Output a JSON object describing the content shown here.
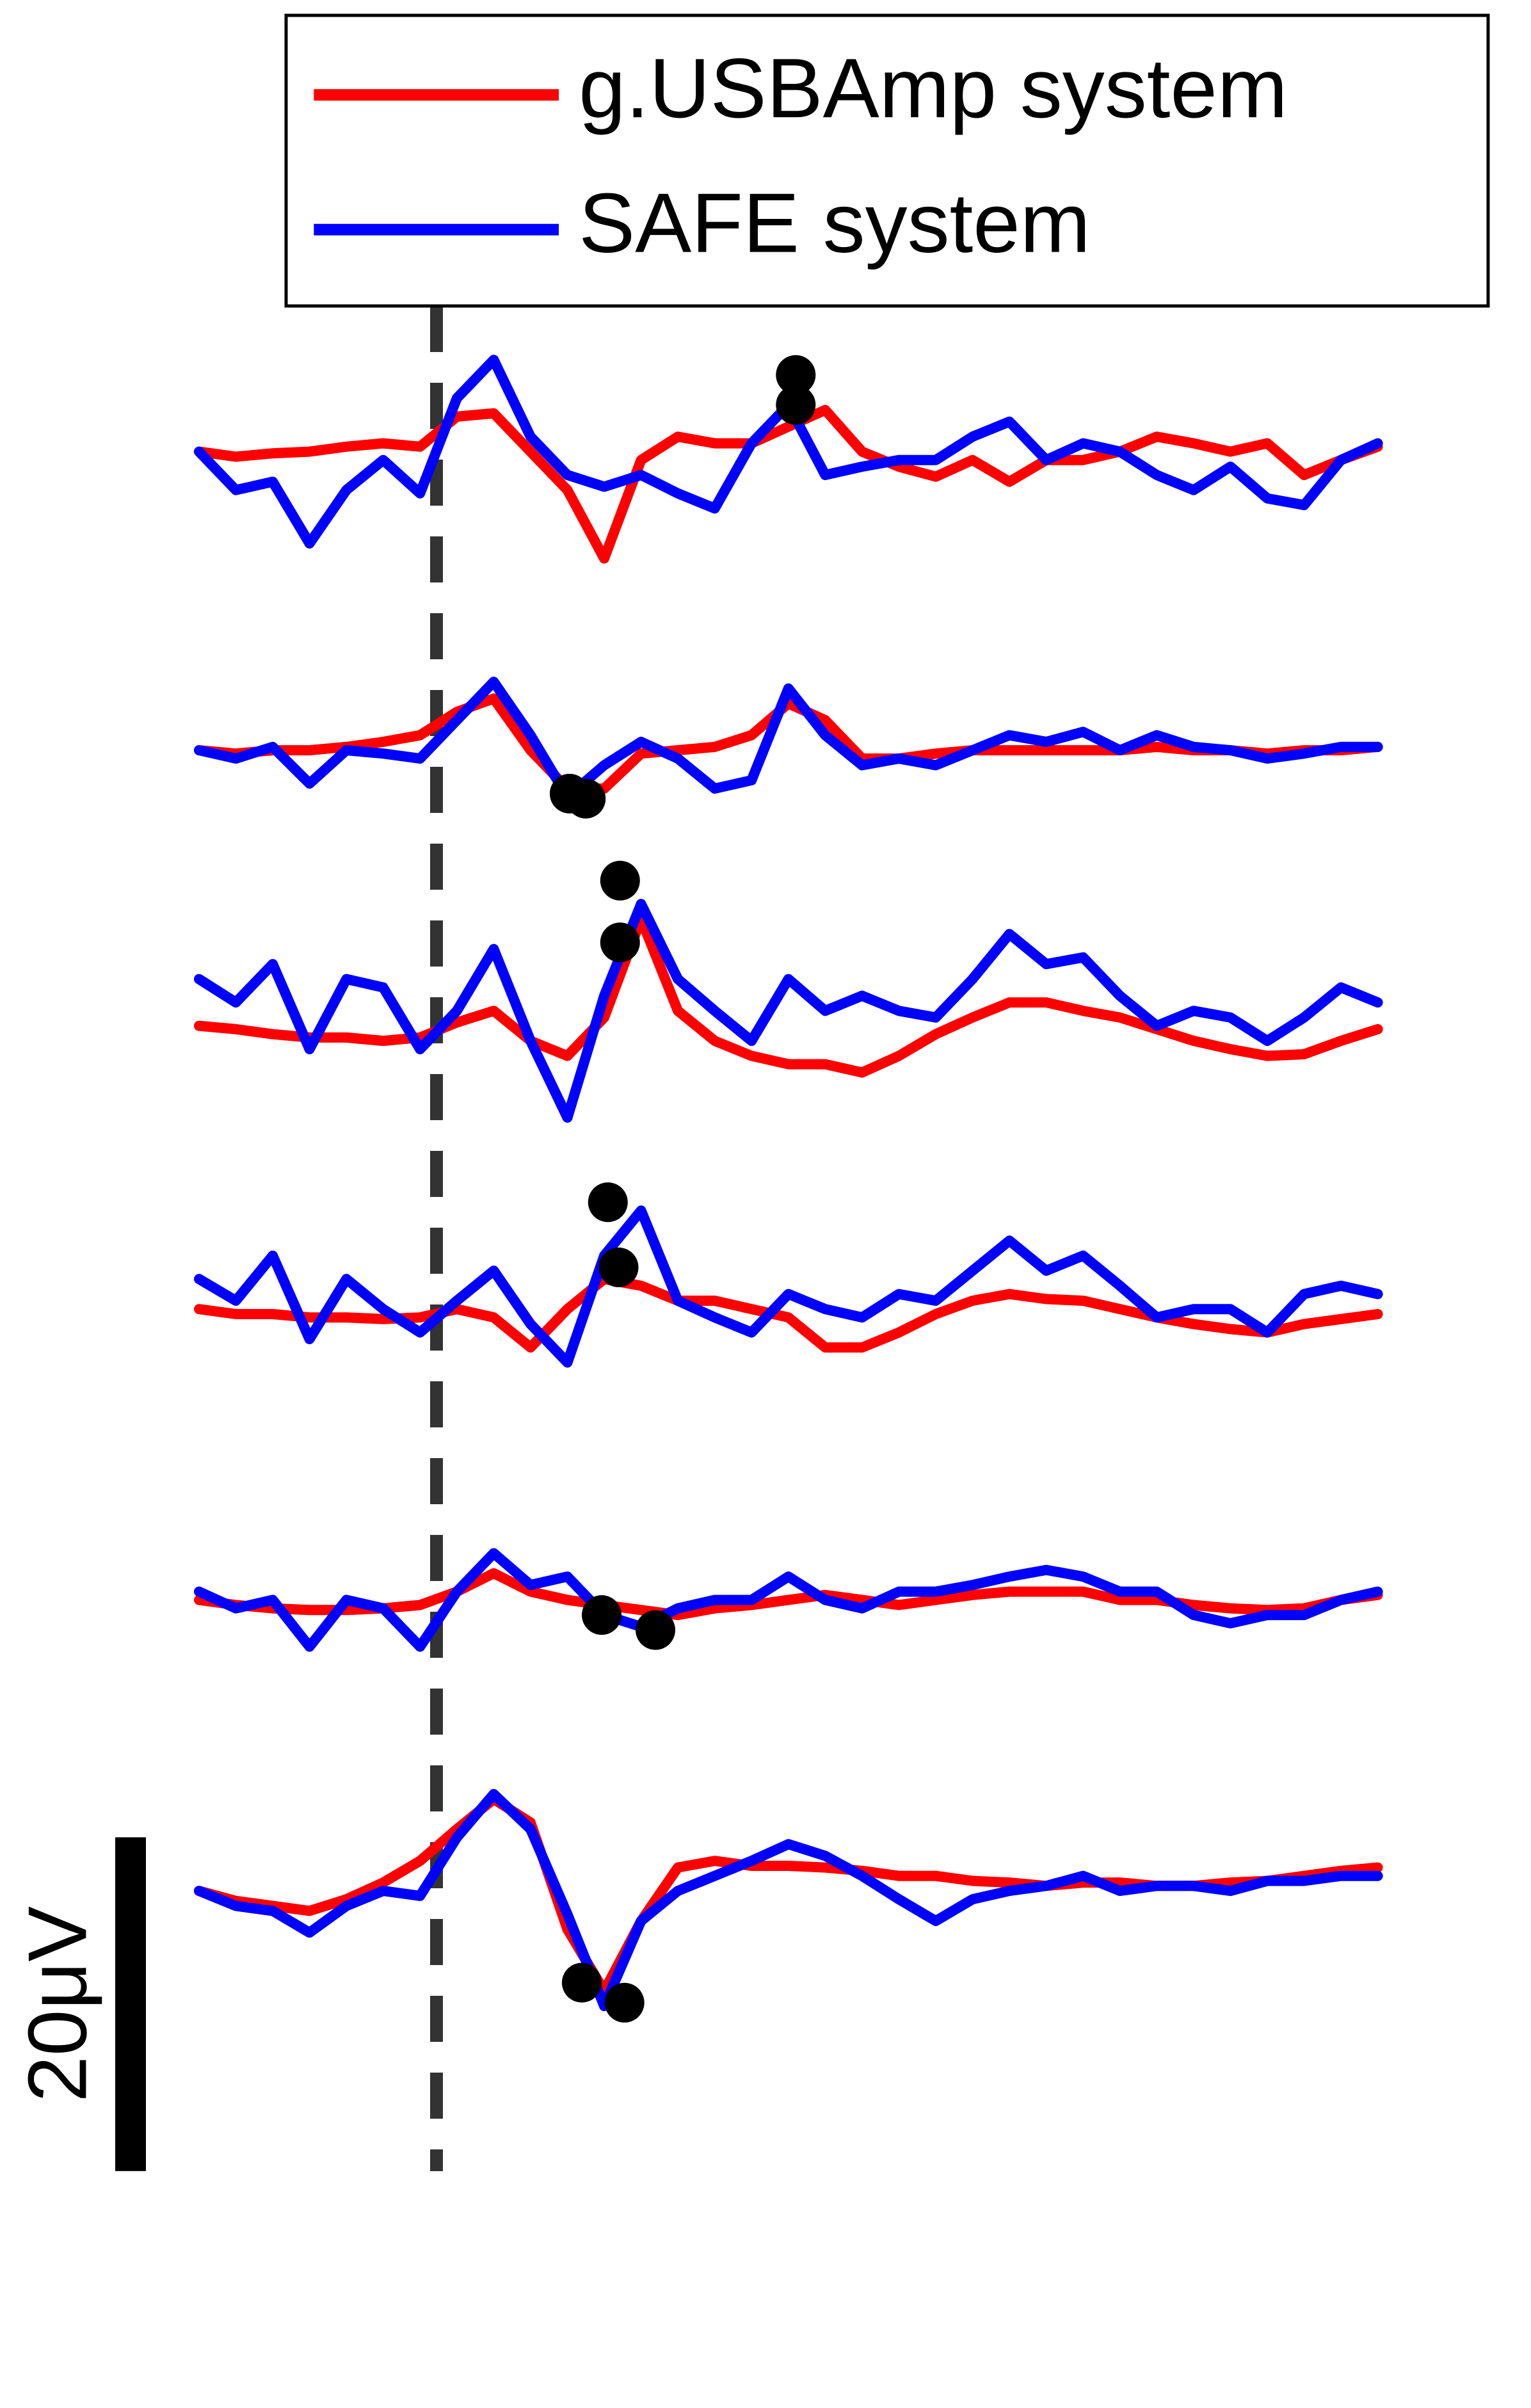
{
  "chart_data": {
    "type": "line",
    "scalebar": {
      "value": 20,
      "label": "20μV"
    },
    "series": [
      {
        "name": "g.USBAmp system",
        "color": "#ff0000",
        "channels": [
          [
            0,
            -0.3,
            -0.1,
            0,
            0.3,
            0.5,
            0.3,
            2.1,
            2.3,
            0,
            -2.3,
            -6.4,
            -0.5,
            0.9,
            0.5,
            0.5,
            1.5,
            2.5,
            0,
            -0.9,
            -1.5,
            -0.5,
            -1.8,
            -0.5,
            -0.5,
            0,
            0.9,
            0.5,
            0,
            0.5,
            -1.4,
            -0.5,
            0.3
          ],
          [
            0,
            -0.2,
            0,
            0,
            0.2,
            0.5,
            0.9,
            2.3,
            3.1,
            0,
            -2.3,
            -2.3,
            -0.2,
            0,
            0.2,
            0.9,
            2.8,
            1.8,
            -0.5,
            -0.5,
            -0.2,
            0,
            0,
            0,
            0,
            0,
            0.2,
            0,
            0,
            -0.2,
            0,
            0,
            0.2
          ],
          [
            0,
            -0.2,
            -0.5,
            -0.7,
            -0.7,
            -0.9,
            -0.7,
            0.2,
            0.9,
            -0.9,
            -1.8,
            0.5,
            6.4,
            0.9,
            -0.9,
            -1.8,
            -2.3,
            -2.3,
            -2.8,
            -1.8,
            -0.5,
            0.5,
            1.4,
            1.4,
            0.9,
            0.5,
            -0.2,
            -0.9,
            -1.4,
            -1.8,
            -1.7,
            -0.9,
            -0.2
          ],
          [
            0,
            -0.3,
            -0.3,
            -0.5,
            -0.5,
            -0.6,
            -0.5,
            0,
            -0.5,
            -2.3,
            0,
            1.8,
            1.4,
            0.5,
            0.5,
            0,
            -0.5,
            -2.3,
            -2.3,
            -1.4,
            -0.3,
            0.5,
            0.9,
            0.6,
            0.5,
            0,
            -0.5,
            -0.9,
            -1.2,
            -1.4,
            -0.9,
            -0.6,
            -0.3
          ],
          [
            0,
            -0.3,
            -0.5,
            -0.6,
            -0.6,
            -0.5,
            -0.3,
            0.5,
            1.6,
            0.5,
            0,
            -0.3,
            -0.6,
            -0.9,
            -0.5,
            -0.3,
            0,
            0.3,
            0,
            -0.3,
            0,
            0.3,
            0.5,
            0.5,
            0.5,
            0,
            0,
            -0.3,
            -0.5,
            -0.6,
            -0.5,
            0,
            0.3
          ],
          [
            0,
            -0.6,
            -0.9,
            -1.2,
            -0.5,
            0.5,
            1.8,
            3.7,
            5.5,
            4.1,
            -2.3,
            -6,
            -1.8,
            1.4,
            1.8,
            1.5,
            1.5,
            1.4,
            1.2,
            0.9,
            0.9,
            0.6,
            0.5,
            0.3,
            0.5,
            0.5,
            0.3,
            0.3,
            0.5,
            0.6,
            0.9,
            1.2,
            1.4
          ]
        ],
        "peaks": [
          {
            "x": 16.2,
            "value": 2.8
          },
          {
            "x": 10.06,
            "value": -2.6
          },
          {
            "x": 11.43,
            "value": 5.0
          },
          {
            "x": 11.39,
            "value": 2.5
          },
          {
            "x": 10.93,
            "value": -0.9
          },
          {
            "x": 10.39,
            "value": -5.5
          }
        ]
      },
      {
        "name": "SAFE system",
        "color": "#0000ff",
        "channels": [
          [
            0,
            -2.3,
            -1.8,
            -5.5,
            -2.3,
            -0.5,
            -2.5,
            3.2,
            5.5,
            0.9,
            -1.4,
            -2.1,
            -1.4,
            -2.5,
            -3.4,
            0.5,
            2.8,
            -1.4,
            -0.9,
            -0.5,
            -0.5,
            0.9,
            1.8,
            -0.5,
            0.5,
            0,
            -1.4,
            -2.3,
            -0.9,
            -2.8,
            -3.2,
            -0.5,
            0.5
          ],
          [
            0,
            -0.5,
            0.2,
            -2,
            0,
            -0.2,
            -0.5,
            1.8,
            4.1,
            0.9,
            -2.8,
            -0.9,
            0.5,
            -0.5,
            -2.3,
            -1.8,
            3.7,
            0.9,
            -0.9,
            -0.5,
            -0.9,
            0,
            0.9,
            0.5,
            1.1,
            0,
            0.9,
            0.2,
            0,
            -0.5,
            -0.2,
            0.2,
            0.2
          ],
          [
            2.8,
            1.4,
            3.7,
            -1.4,
            2.8,
            2.3,
            -1.4,
            0.9,
            4.6,
            -0.9,
            -5.5,
            1.8,
            7.3,
            2.8,
            0.9,
            -0.9,
            2.8,
            0.9,
            1.8,
            0.9,
            0.5,
            2.8,
            5.5,
            3.7,
            4.1,
            1.8,
            0,
            0.9,
            0.5,
            -0.9,
            0.5,
            2.3,
            1.4
          ],
          [
            1.8,
            0.5,
            3.2,
            -1.8,
            1.8,
            0,
            -1.4,
            0.5,
            2.3,
            -0.9,
            -3.2,
            3.2,
            5.9,
            0.5,
            -0.5,
            -1.4,
            0.9,
            0,
            -0.5,
            0.9,
            0.5,
            2.3,
            4.1,
            2.3,
            3.2,
            1.4,
            -0.5,
            0,
            0,
            -1.4,
            0.9,
            1.4,
            0.9
          ],
          [
            0.5,
            -0.5,
            0,
            -2.8,
            0,
            -0.5,
            -2.8,
            0.5,
            2.8,
            0.9,
            1.4,
            -0.9,
            -1.6,
            -0.5,
            0,
            0,
            1.4,
            0,
            -0.5,
            0.5,
            0.5,
            0.9,
            1.4,
            1.8,
            1.4,
            0.5,
            0.5,
            -0.9,
            -1.4,
            -0.9,
            -0.9,
            0,
            0.5
          ],
          [
            0,
            -0.9,
            -1.2,
            -2.5,
            -0.9,
            0,
            -0.3,
            3.2,
            5.8,
            3.7,
            -1.4,
            -6.9,
            -1.8,
            0,
            0.9,
            1.8,
            2.8,
            2.1,
            0.9,
            -0.5,
            -1.8,
            -0.5,
            0,
            0.3,
            0.9,
            0,
            0.3,
            0.3,
            0,
            0.6,
            0.6,
            0.9,
            0.9
          ]
        ],
        "peaks": [
          {
            "x": 16.2,
            "value": 4.6
          },
          {
            "x": 10.5,
            "value": -2.9
          },
          {
            "x": 11.43,
            "value": 8.7
          },
          {
            "x": 11.1,
            "value": 6.4
          },
          {
            "x": 12.39,
            "value": -1.8
          },
          {
            "x": 11.55,
            "value": -6.7
          }
        ]
      }
    ]
  }
}
